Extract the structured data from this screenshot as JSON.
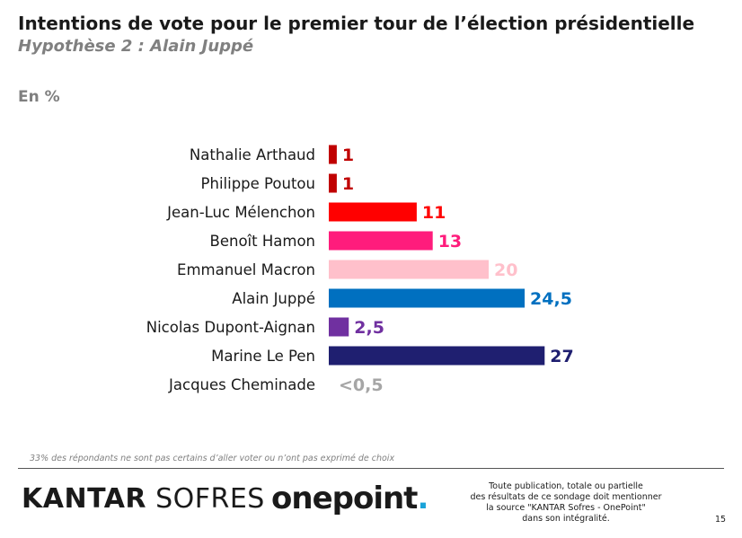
{
  "header": {
    "title": "Intentions de vote pour le premier tour de l’élection présidentielle",
    "subtitle": "Hypothèse 2 : Alain Juppé",
    "unit": "En %"
  },
  "chart_data": {
    "type": "bar",
    "orientation": "horizontal",
    "title": "Intentions de vote pour le premier tour de l’élection présidentielle",
    "subtitle": "Hypothèse 2 : Alain Juppé",
    "ylabel": "En %",
    "xlim": [
      0,
      27
    ],
    "grid": false,
    "categories": [
      "Nathalie Arthaud",
      "Philippe Poutou",
      "Jean-Luc Mélenchon",
      "Benoît Hamon",
      "Emmanuel Macron",
      "Alain Juppé",
      "Nicolas Dupont-Aignan",
      "Marine Le Pen",
      "Jacques Cheminade"
    ],
    "values": [
      1,
      1,
      11,
      13,
      20,
      24.5,
      2.5,
      27,
      0.3
    ],
    "value_labels": [
      "1",
      "1",
      "11",
      "13",
      "20",
      "24,5",
      "2,5",
      "27",
      "<0,5"
    ],
    "colors": [
      "#c00000",
      "#c00000",
      "#ff0000",
      "#ff1c7c",
      "#ffc0cb",
      "#0070c0",
      "#7030a0",
      "#1f1f70",
      "#a6a6a6"
    ]
  },
  "footer": {
    "note": "33% des répondants ne sont pas certains d’aller voter ou n’ont pas exprimé de choix",
    "logo_kantar_bold": "KANTAR",
    "logo_kantar_light": "SOFRES",
    "logo_onepoint": "onepoint",
    "logo_onepoint_dot": ".",
    "legal": [
      "Toute publication, totale ou partielle",
      "des résultats de ce sondage doit mentionner",
      "la source \"KANTAR Sofres - OnePoint\"",
      "dans son intégralité."
    ],
    "page_number": "15"
  }
}
